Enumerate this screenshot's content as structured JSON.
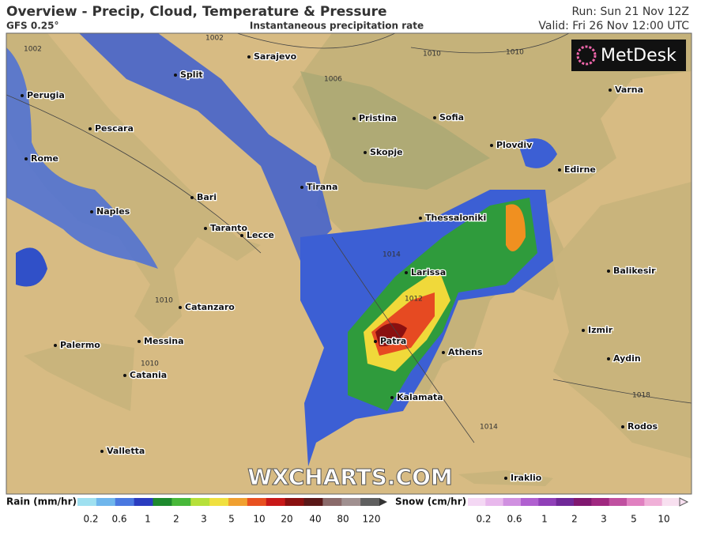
{
  "header": {
    "title": "Overview - Precip, Cloud, Temperature & Pressure",
    "model": "GFS 0.25°",
    "subtitle": "Instantaneous precipitation rate",
    "run": "Run: Sun 21 Nov 12Z",
    "valid": "Valid: Fri 26 Nov 12:00 UTC"
  },
  "map": {
    "logo": "MetDesk",
    "watermark": "WXCHARTS.COM",
    "cities": [
      "Sarajevo",
      "Split",
      "Perugia",
      "Pescara",
      "Pristina",
      "Sofia",
      "Varna",
      "Plovdiv",
      "Rome",
      "Skopje",
      "Edirne",
      "Tirana",
      "Bari",
      "Naples",
      "Thessaloniki",
      "Taranto",
      "Lecce",
      "Larissa",
      "Balikesir",
      "Catanzaro",
      "Izmir",
      "Palermo",
      "Messina",
      "Patra",
      "Athens",
      "Aydin",
      "Catania",
      "Kalamata",
      "Rodos",
      "Valletta",
      "Iraklio"
    ],
    "isobar_labels": [
      "1002",
      "1002",
      "1006",
      "1010",
      "1010",
      "1014",
      "1012",
      "1010",
      "1010",
      "1014",
      "1018"
    ]
  },
  "legend": {
    "rain": {
      "label": "Rain (mm/hr)",
      "values": [
        0.2,
        0.6,
        1,
        2,
        3,
        5,
        10,
        20,
        40,
        80,
        120
      ]
    },
    "snow": {
      "label": "Snow (cm/hr)",
      "values": [
        0.2,
        0.6,
        1,
        2,
        3,
        5,
        10
      ]
    }
  }
}
